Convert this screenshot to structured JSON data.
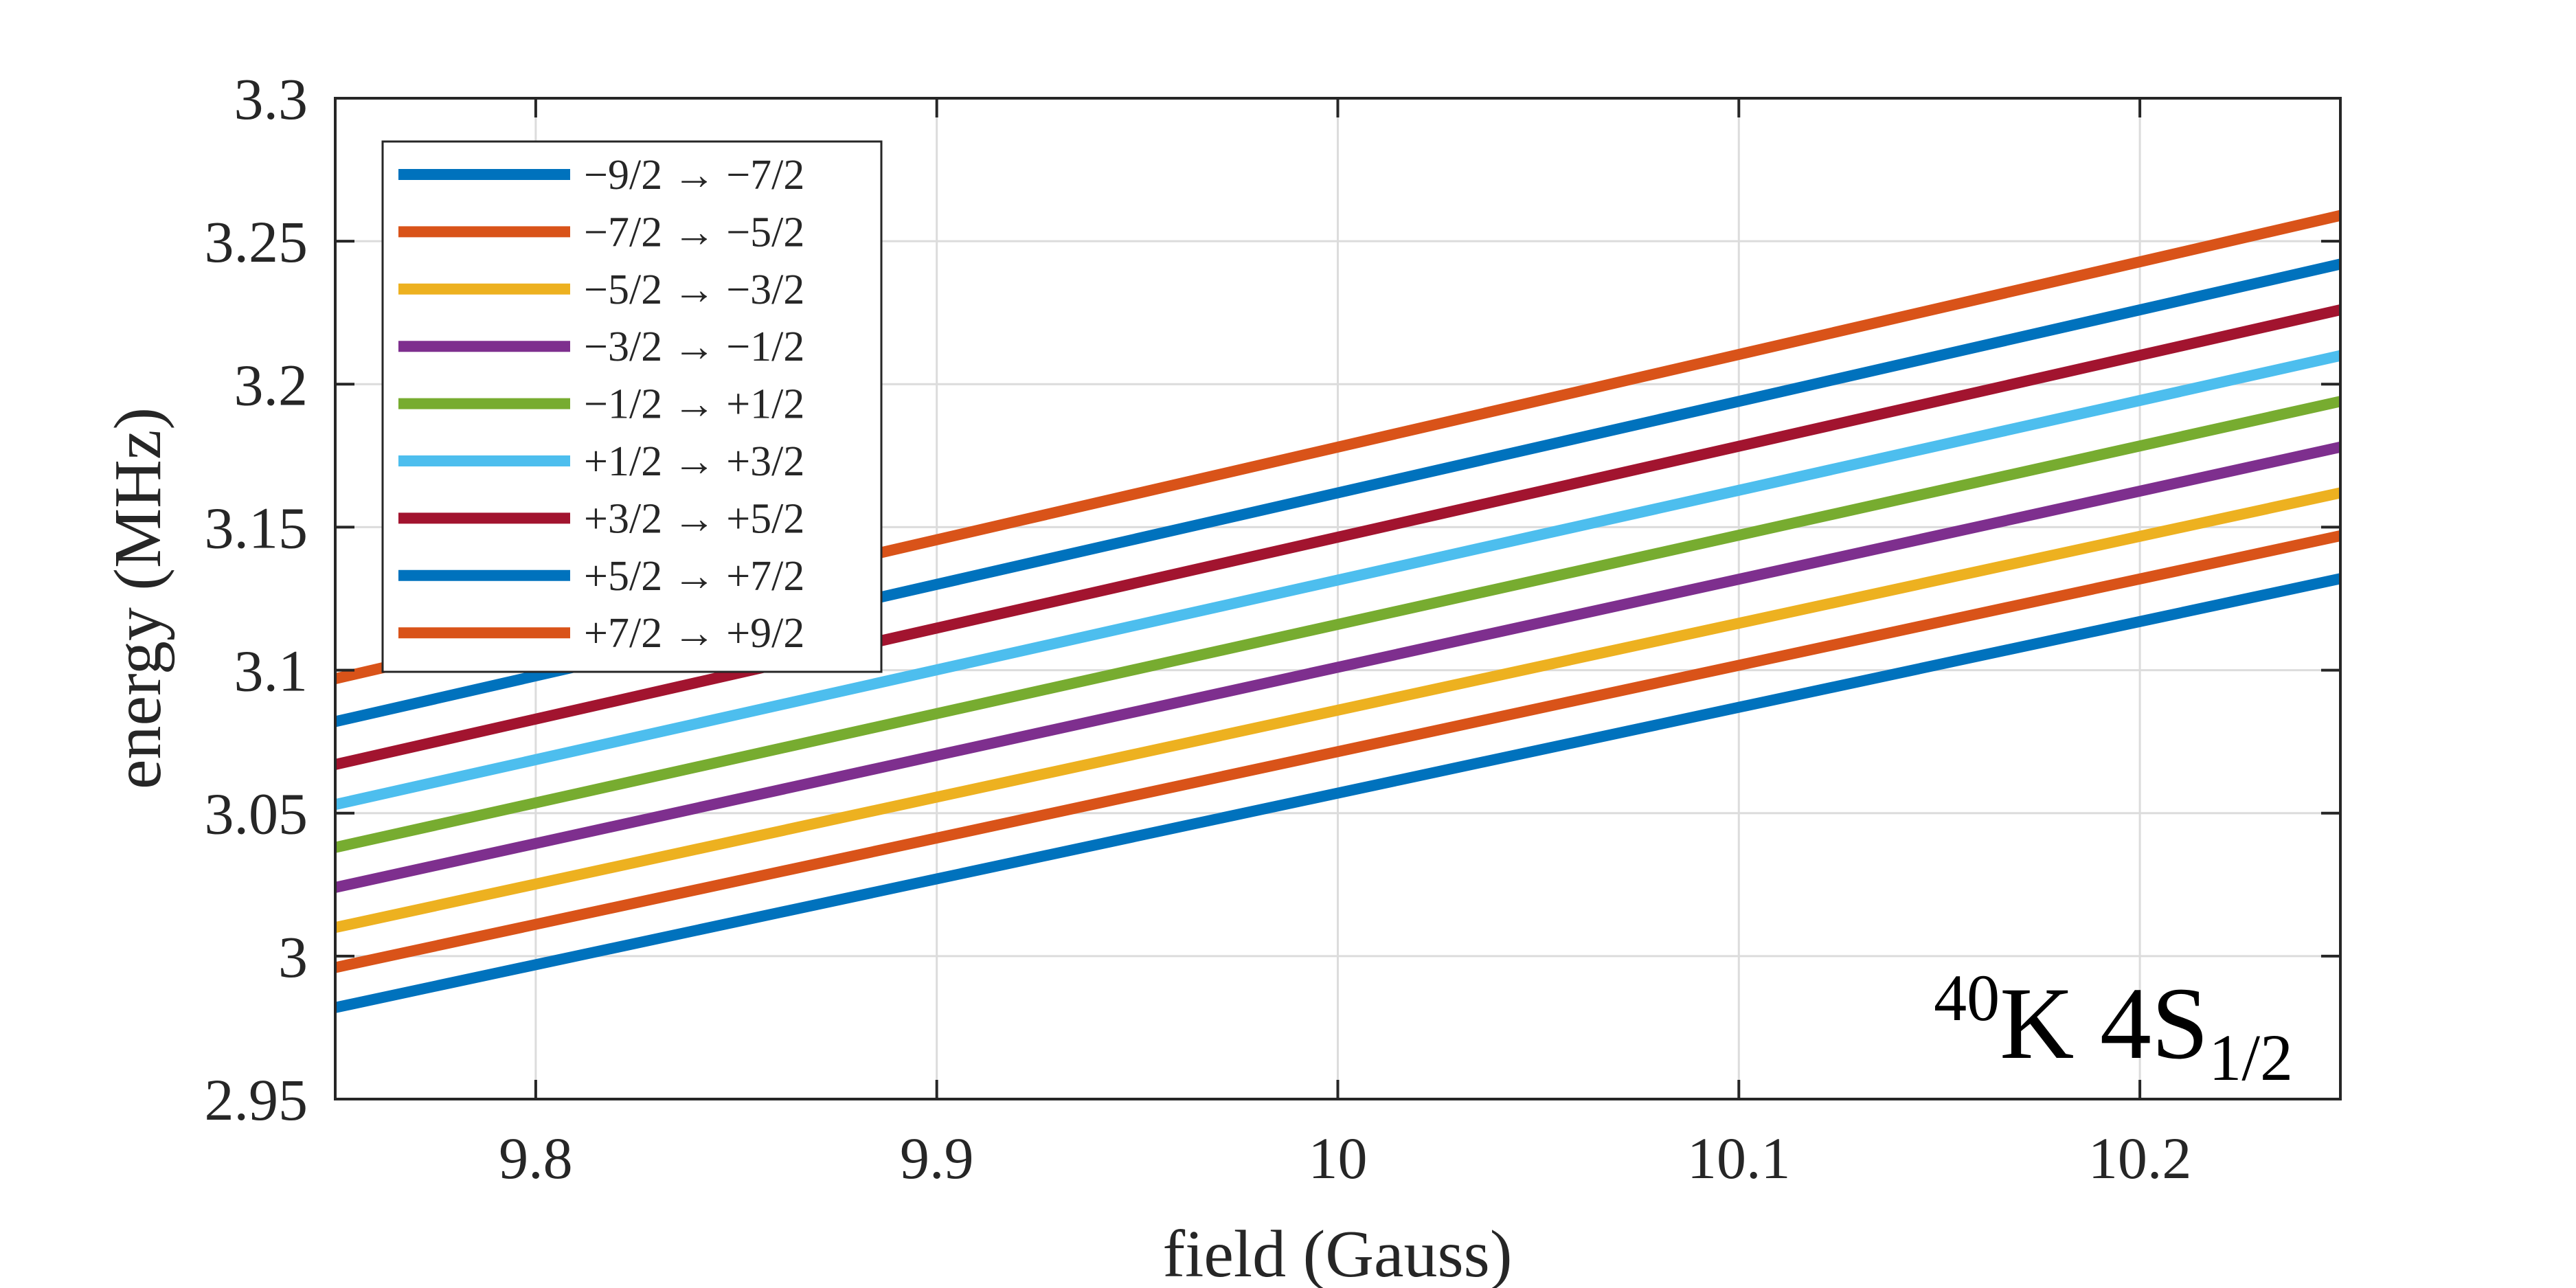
{
  "chart_data": {
    "type": "line",
    "title": "",
    "xlabel": "field (Gauss)",
    "ylabel": "energy (MHz)",
    "xlim": [
      9.75,
      10.25
    ],
    "ylim": [
      2.95,
      3.3
    ],
    "xticks": [
      9.8,
      9.9,
      10,
      10.1,
      10.2
    ],
    "xtick_labels": [
      "9.8",
      "9.9",
      "10",
      "10.1",
      "10.2"
    ],
    "yticks": [
      2.95,
      3.0,
      3.05,
      3.1,
      3.15,
      3.2,
      3.25,
      3.3
    ],
    "ytick_labels": [
      "2.95",
      "3",
      "3.05",
      "3.1",
      "3.15",
      "3.2",
      "3.25",
      "3.3"
    ],
    "grid": true,
    "legend_position": "top-left",
    "annotation": {
      "mass_number": "40",
      "element": "K 4S",
      "subscript": "1/2"
    },
    "series": [
      {
        "name": "−9/2 → −7/2",
        "color": "#0072bd",
        "x": [
          9.75,
          10.25
        ],
        "y": [
          2.982,
          3.132
        ]
      },
      {
        "name": "−7/2 → −5/2",
        "color": "#d95319",
        "x": [
          9.75,
          10.25
        ],
        "y": [
          2.996,
          3.147
        ]
      },
      {
        "name": "−5/2 → −3/2",
        "color": "#edb120",
        "x": [
          9.75,
          10.25
        ],
        "y": [
          3.01,
          3.162
        ]
      },
      {
        "name": "−3/2 → −1/2",
        "color": "#7e2f8e",
        "x": [
          9.75,
          10.25
        ],
        "y": [
          3.024,
          3.178
        ]
      },
      {
        "name": "−1/2 → +1/2",
        "color": "#77ac30",
        "x": [
          9.75,
          10.25
        ],
        "y": [
          3.038,
          3.194
        ]
      },
      {
        "name": "+1/2 → +3/2",
        "color": "#4dbeee",
        "x": [
          9.75,
          10.25
        ],
        "y": [
          3.053,
          3.21
        ]
      },
      {
        "name": "+3/2 → +5/2",
        "color": "#a2142f",
        "x": [
          9.75,
          10.25
        ],
        "y": [
          3.067,
          3.226
        ]
      },
      {
        "name": "+5/2 → +7/2",
        "color": "#0072bd",
        "x": [
          9.75,
          10.25
        ],
        "y": [
          3.082,
          3.242
        ]
      },
      {
        "name": "+7/2 → +9/2",
        "color": "#d95319",
        "x": [
          9.75,
          10.25
        ],
        "y": [
          3.097,
          3.259
        ]
      }
    ]
  }
}
